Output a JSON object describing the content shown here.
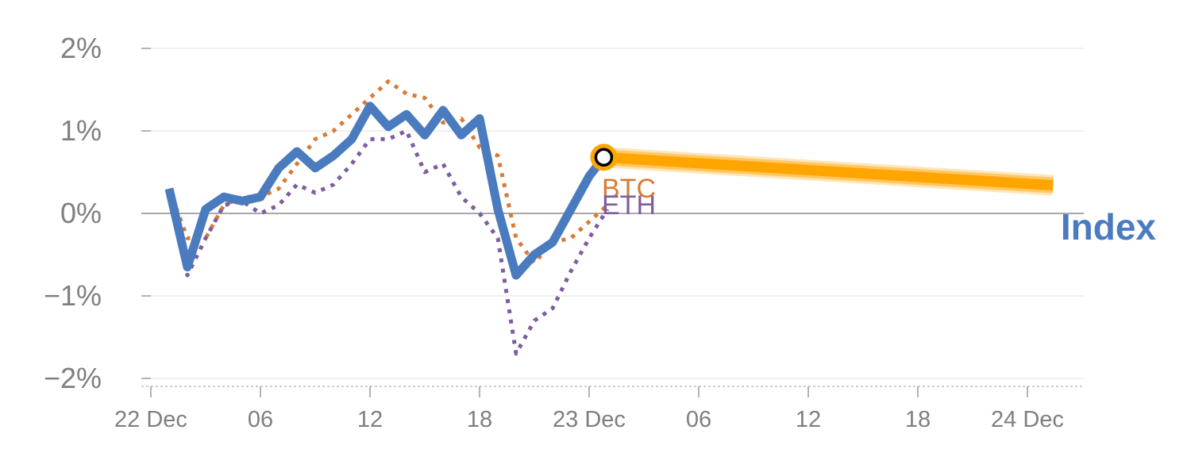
{
  "chart_data": {
    "type": "line",
    "yticks": [
      "2%",
      "1%",
      "0%",
      "−1%",
      "−2%"
    ],
    "ytick_values": [
      2,
      1,
      0,
      -1,
      -2
    ],
    "ylim": [
      -2.1,
      2.1
    ],
    "xlim": [
      0,
      51
    ],
    "xticks": [
      {
        "hour": 0,
        "label": "22 Dec"
      },
      {
        "hour": 6,
        "label": "06"
      },
      {
        "hour": 12,
        "label": "12"
      },
      {
        "hour": 18,
        "label": "18"
      },
      {
        "hour": 24,
        "label": "23 Dec"
      },
      {
        "hour": 30,
        "label": "06"
      },
      {
        "hour": 36,
        "label": "12"
      },
      {
        "hour": 42,
        "label": "18"
      },
      {
        "hour": 48,
        "label": "24 Dec"
      }
    ],
    "grid": true,
    "series": [
      {
        "name": "BTC",
        "color": "#d97b36",
        "style": "dotted",
        "x": [
          1,
          2,
          3,
          4,
          5,
          6,
          7,
          8,
          9,
          10,
          11,
          12,
          13,
          14,
          15,
          16,
          17,
          18,
          19,
          20,
          21,
          22,
          23,
          24,
          25
        ],
        "y": [
          0.3,
          -0.3,
          -0.3,
          0.1,
          0.2,
          0.2,
          0.3,
          0.6,
          0.9,
          1.0,
          1.2,
          1.4,
          1.6,
          1.45,
          1.4,
          1.1,
          1.15,
          0.8,
          0.7,
          -0.3,
          -0.6,
          -0.35,
          -0.3,
          -0.1,
          0.1
        ]
      },
      {
        "name": "ETH",
        "color": "#7e5ca0",
        "style": "dotted",
        "x": [
          1,
          2,
          3,
          4,
          5,
          6,
          7,
          8,
          9,
          10,
          11,
          12,
          13,
          14,
          15,
          16,
          17,
          18,
          19,
          20,
          21,
          22,
          23,
          24,
          25
        ],
        "y": [
          0.25,
          -0.75,
          -0.3,
          0.1,
          0.15,
          0.0,
          0.1,
          0.35,
          0.25,
          0.35,
          0.6,
          0.9,
          0.9,
          1.0,
          0.5,
          0.6,
          0.2,
          0.0,
          -0.3,
          -1.7,
          -1.3,
          -1.15,
          -0.7,
          -0.3,
          0.05
        ]
      },
      {
        "name": "Index",
        "color": "#4a7bbf",
        "style": "solid",
        "x": [
          1,
          2,
          3,
          4,
          5,
          6,
          7,
          8,
          9,
          10,
          11,
          12,
          13,
          14,
          15,
          16,
          17,
          18,
          19,
          20,
          21,
          22,
          23,
          24,
          24.8
        ],
        "y": [
          0.3,
          -0.65,
          0.05,
          0.2,
          0.15,
          0.2,
          0.55,
          0.75,
          0.55,
          0.7,
          0.9,
          1.3,
          1.05,
          1.2,
          0.95,
          1.25,
          0.95,
          1.15,
          0.05,
          -0.75,
          -0.5,
          -0.35,
          0.05,
          0.45,
          0.68
        ]
      }
    ],
    "forecast": {
      "color": "#ffa500",
      "x": [
        24.8,
        49.4
      ],
      "y": [
        0.68,
        0.34
      ]
    },
    "current_marker": {
      "x": 24.8,
      "y": 0.68
    },
    "labels": {
      "btc": "BTC",
      "eth": "ETH",
      "index": "Index"
    }
  }
}
